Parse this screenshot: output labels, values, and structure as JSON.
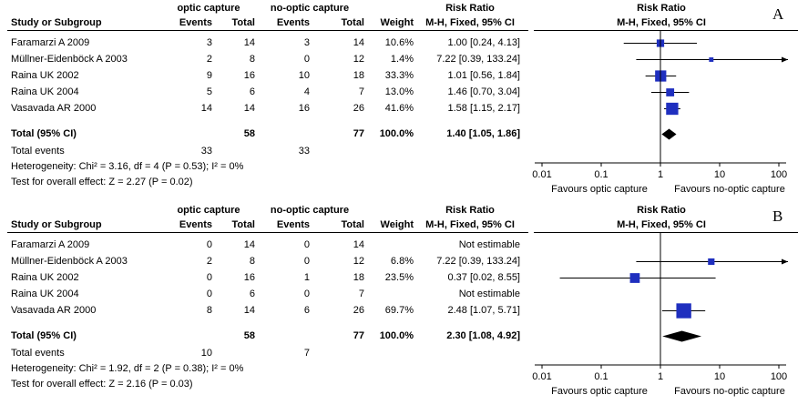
{
  "chart_data": [
    {
      "type": "forest",
      "panel_label": "A",
      "group1_label": "optic capture",
      "group2_label": "no-optic capture",
      "headers": {
        "study": "Study or Subgroup",
        "events": "Events",
        "total": "Total",
        "weight": "Weight",
        "rr_title": "Risk Ratio",
        "rr_method": "M-H, Fixed, 95% CI"
      },
      "studies": [
        {
          "name": "Faramarzi A 2009",
          "e1": "3",
          "n1": "14",
          "e2": "3",
          "n2": "14",
          "weight": "10.6%",
          "ci_text": "1.00 [0.24, 4.13]",
          "rr": 1.0,
          "lo": 0.24,
          "hi": 4.13,
          "w": 10.6,
          "estimable": true
        },
        {
          "name": "Müllner-Eidenböck A  2003",
          "e1": "2",
          "n1": "8",
          "e2": "0",
          "n2": "12",
          "weight": "1.4%",
          "ci_text": "7.22 [0.39, 133.24]",
          "rr": 7.22,
          "lo": 0.39,
          "hi": 133.24,
          "w": 1.4,
          "estimable": true
        },
        {
          "name": "Raina UK 2002",
          "e1": "9",
          "n1": "16",
          "e2": "10",
          "n2": "18",
          "weight": "33.3%",
          "ci_text": "1.01 [0.56, 1.84]",
          "rr": 1.01,
          "lo": 0.56,
          "hi": 1.84,
          "w": 33.3,
          "estimable": true
        },
        {
          "name": "Raina UK 2004",
          "e1": "5",
          "n1": "6",
          "e2": "4",
          "n2": "7",
          "weight": "13.0%",
          "ci_text": "1.46 [0.70, 3.04]",
          "rr": 1.46,
          "lo": 0.7,
          "hi": 3.04,
          "w": 13.0,
          "estimable": true
        },
        {
          "name": "Vasavada AR 2000",
          "e1": "14",
          "n1": "14",
          "e2": "16",
          "n2": "26",
          "weight": "41.6%",
          "ci_text": "1.58 [1.15, 2.17]",
          "rr": 1.58,
          "lo": 1.15,
          "hi": 2.17,
          "w": 41.6,
          "estimable": true
        }
      ],
      "total": {
        "label": "Total (95% CI)",
        "n1": "58",
        "n2": "77",
        "weight": "100.0%",
        "ci_text": "1.40 [1.05, 1.86]",
        "rr": 1.4,
        "lo": 1.05,
        "hi": 1.86
      },
      "total_events": {
        "label": "Total events",
        "e1": "33",
        "e2": "33"
      },
      "heterogeneity": "Heterogeneity: Chi² = 3.16, df = 4 (P = 0.53); I² = 0%",
      "overall_effect": "Test for overall effect: Z = 2.27 (P = 0.02)",
      "axis": {
        "ticks": [
          0.01,
          0.1,
          1,
          10,
          100
        ],
        "tick_labels": [
          "0.01",
          "0.1",
          "1",
          "10",
          "100"
        ],
        "scale": "log",
        "xlim": [
          0.01,
          100
        ]
      },
      "favours_left": "Favours optic capture",
      "favours_right": "Favours no-optic capture"
    },
    {
      "type": "forest",
      "panel_label": "B",
      "group1_label": "optic capture",
      "group2_label": "no-optic capture",
      "headers": {
        "study": "Study or Subgroup",
        "events": "Events",
        "total": "Total",
        "weight": "Weight",
        "rr_title": "Risk Ratio",
        "rr_method": "M-H, Fixed, 95% CI"
      },
      "studies": [
        {
          "name": "Faramarzi A 2009",
          "e1": "0",
          "n1": "14",
          "e2": "0",
          "n2": "14",
          "weight": "",
          "ci_text": "Not estimable",
          "estimable": false
        },
        {
          "name": "Müllner-Eidenböck A  2003",
          "e1": "2",
          "n1": "8",
          "e2": "0",
          "n2": "12",
          "weight": "6.8%",
          "ci_text": "7.22 [0.39, 133.24]",
          "rr": 7.22,
          "lo": 0.39,
          "hi": 133.24,
          "w": 6.8,
          "estimable": true
        },
        {
          "name": "Raina UK 2002",
          "e1": "0",
          "n1": "16",
          "e2": "1",
          "n2": "18",
          "weight": "23.5%",
          "ci_text": "0.37 [0.02, 8.55]",
          "rr": 0.37,
          "lo": 0.02,
          "hi": 8.55,
          "w": 23.5,
          "estimable": true
        },
        {
          "name": "Raina UK 2004",
          "e1": "0",
          "n1": "6",
          "e2": "0",
          "n2": "7",
          "weight": "",
          "ci_text": "Not estimable",
          "estimable": false
        },
        {
          "name": "Vasavada AR 2000",
          "e1": "8",
          "n1": "14",
          "e2": "6",
          "n2": "26",
          "weight": "69.7%",
          "ci_text": "2.48 [1.07, 5.71]",
          "rr": 2.48,
          "lo": 1.07,
          "hi": 5.71,
          "w": 69.7,
          "estimable": true
        }
      ],
      "total": {
        "label": "Total (95% CI)",
        "n1": "58",
        "n2": "77",
        "weight": "100.0%",
        "ci_text": "2.30 [1.08, 4.92]",
        "rr": 2.3,
        "lo": 1.08,
        "hi": 4.92
      },
      "total_events": {
        "label": "Total events",
        "e1": "10",
        "e2": "7"
      },
      "heterogeneity": "Heterogeneity: Chi² = 1.92, df = 2 (P = 0.38); I² = 0%",
      "overall_effect": "Test for overall effect: Z = 2.16 (P = 0.03)",
      "axis": {
        "ticks": [
          0.01,
          0.1,
          1,
          10,
          100
        ],
        "tick_labels": [
          "0.01",
          "0.1",
          "1",
          "10",
          "100"
        ],
        "scale": "log",
        "xlim": [
          0.01,
          100
        ]
      },
      "favours_left": "Favours optic capture",
      "favours_right": "Favours no-optic capture"
    }
  ],
  "colors": {
    "marker": "#1f2fbf",
    "ci_line": "#000000",
    "diamond": "#000000"
  }
}
